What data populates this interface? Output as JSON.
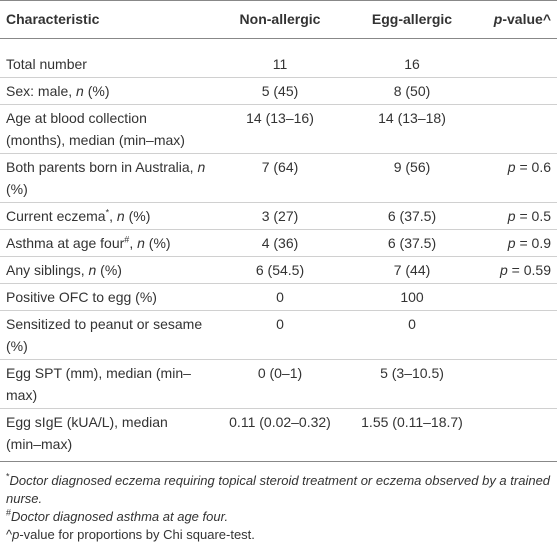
{
  "table": {
    "header": [
      [
        "Characteristic"
      ],
      [
        "Non-allergic"
      ],
      [
        "Egg-allergic"
      ],
      [
        {
          "text": "p",
          "style": "italic"
        },
        "-value^"
      ]
    ],
    "rows": [
      [
        [
          "Total number"
        ],
        [
          "11"
        ],
        [
          "16"
        ],
        null
      ],
      [
        [
          "Sex: male, ",
          {
            "text": "n",
            "style": "italic"
          },
          " (%)"
        ],
        [
          "5 (45)"
        ],
        [
          "8 (50)"
        ],
        null
      ],
      [
        [
          "Age at blood collection (months), median (min–max)"
        ],
        [
          "14 (13–16)"
        ],
        [
          "14 (13–18)"
        ],
        null
      ],
      [
        [
          "Both parents born in Australia, ",
          {
            "text": "n",
            "style": "italic"
          },
          " (%)"
        ],
        [
          "7 (64)"
        ],
        [
          "9 (56)"
        ],
        [
          {
            "text": "p",
            "style": "italic"
          },
          " = 0.6"
        ]
      ],
      [
        [
          "Current eczema",
          {
            "text": "*",
            "style": "sup"
          },
          ", ",
          {
            "text": "n",
            "style": "italic"
          },
          " (%)"
        ],
        [
          "3 (27)"
        ],
        [
          "6 (37.5)"
        ],
        [
          {
            "text": "p",
            "style": "italic"
          },
          " = 0.5"
        ]
      ],
      [
        [
          "Asthma at age four",
          {
            "text": "#",
            "style": "sup"
          },
          ", ",
          {
            "text": "n",
            "style": "italic"
          },
          " (%)"
        ],
        [
          "4 (36)"
        ],
        [
          "6 (37.5)"
        ],
        [
          {
            "text": "p",
            "style": "italic"
          },
          " = 0.9"
        ]
      ],
      [
        [
          "Any siblings, ",
          {
            "text": "n",
            "style": "italic"
          },
          " (%)"
        ],
        [
          "6 (54.5)"
        ],
        [
          "7 (44)"
        ],
        [
          {
            "text": "p",
            "style": "italic"
          },
          " = 0.59"
        ]
      ],
      [
        [
          "Positive OFC to egg (%)"
        ],
        [
          "0"
        ],
        [
          "100"
        ],
        null
      ],
      [
        [
          "Sensitized to peanut or sesame (%)"
        ],
        [
          "0"
        ],
        [
          "0"
        ],
        null
      ],
      [
        [
          "Egg SPT (mm), median (min–max)"
        ],
        [
          "0 (0–1)"
        ],
        [
          "5 (3–10.5)"
        ],
        null
      ],
      [
        [
          "Egg sIgE (kUA/L), median (min–max)"
        ],
        [
          "0.11 (0.02–0.32)"
        ],
        [
          "1.55 (0.11–18.7)"
        ],
        null
      ]
    ],
    "footnotes": [
      [
        {
          "text": "*",
          "style": "sup"
        },
        {
          "text": "Doctor diagnosed eczema requiring topical steroid treatment or eczema observed by a trained nurse.",
          "style": "italic"
        }
      ],
      [
        {
          "text": "#",
          "style": "sup"
        },
        {
          "text": "Doctor diagnosed asthma at age four.",
          "style": "italic"
        }
      ],
      [
        "^",
        {
          "text": "p",
          "style": "italic"
        },
        "-value for proportions by Chi square-test."
      ]
    ]
  }
}
